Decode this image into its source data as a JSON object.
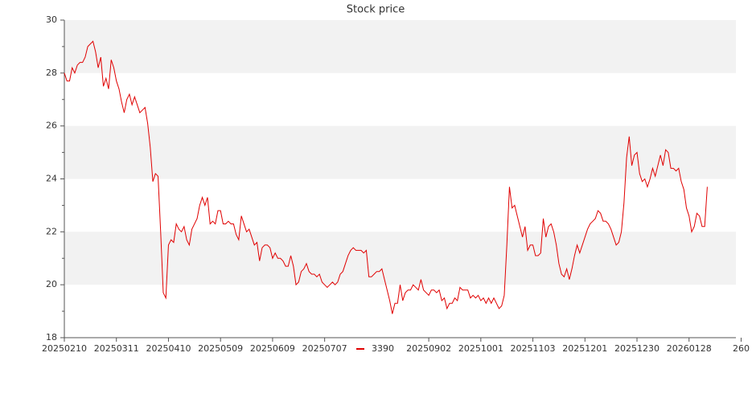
{
  "chart_data": {
    "type": "line",
    "title": "Stock price",
    "x": [
      0,
      1,
      2,
      3,
      4,
      5,
      6,
      7,
      8,
      9,
      10,
      11,
      12,
      13,
      14,
      15,
      16,
      17,
      18,
      19,
      20,
      21,
      22,
      23,
      24,
      25,
      26,
      27,
      28,
      29,
      30,
      31,
      32,
      33,
      34,
      35,
      36,
      37,
      38,
      39,
      40,
      41,
      42,
      43,
      44,
      45,
      46,
      47,
      48,
      49,
      50,
      51,
      52,
      53,
      54,
      55,
      56,
      57,
      58,
      59,
      60,
      61,
      62,
      63,
      64,
      65,
      66,
      67,
      68,
      69,
      70,
      71,
      72,
      73,
      74,
      75,
      76,
      77,
      78,
      79,
      80,
      81,
      82,
      83,
      84,
      85,
      86,
      87,
      88,
      89,
      90,
      91,
      92,
      93,
      94,
      95,
      96,
      97,
      98,
      99,
      100,
      101,
      102,
      103,
      104,
      105,
      106,
      107,
      108,
      109,
      110,
      111,
      112,
      113,
      114,
      115,
      116,
      117,
      118,
      119,
      120,
      121,
      122,
      123,
      124,
      125,
      126,
      127,
      128,
      129,
      130,
      131,
      132,
      133,
      134,
      135,
      136,
      137,
      138,
      139,
      140,
      141,
      142,
      143,
      144,
      145,
      146,
      147,
      148,
      149,
      150,
      151,
      152,
      153,
      154,
      155,
      156,
      157,
      158,
      159,
      160,
      161,
      162,
      163,
      164,
      165,
      166,
      167,
      168,
      169,
      170,
      171,
      172,
      173,
      174,
      175,
      176,
      177,
      178,
      179,
      180,
      181,
      182,
      183,
      184,
      185,
      186,
      187,
      188,
      189,
      190,
      191,
      192,
      193,
      194,
      195,
      196,
      197,
      198,
      199,
      200,
      201,
      202,
      203,
      204,
      205,
      206,
      207,
      208,
      209,
      210,
      211,
      212,
      213,
      214,
      215,
      216,
      217,
      218,
      219,
      220,
      221,
      222,
      223,
      224,
      225,
      226,
      227,
      228,
      229,
      230,
      231,
      232,
      233,
      234,
      235,
      236,
      237,
      238,
      239,
      240,
      241,
      242,
      243,
      244,
      245,
      246,
      247
    ],
    "series": [
      {
        "name": "3390",
        "color": "#e00000",
        "values": [
          28.0,
          27.7,
          27.7,
          28.2,
          28.0,
          28.3,
          28.4,
          28.4,
          28.6,
          29.0,
          29.1,
          29.2,
          28.8,
          28.2,
          28.6,
          27.5,
          27.8,
          27.4,
          28.5,
          28.2,
          27.7,
          27.4,
          26.9,
          26.5,
          27.0,
          27.2,
          26.8,
          27.1,
          26.8,
          26.5,
          26.6,
          26.7,
          26.1,
          25.2,
          23.9,
          24.2,
          24.1,
          22.0,
          19.7,
          19.5,
          21.5,
          21.7,
          21.6,
          22.3,
          22.1,
          22.0,
          22.2,
          21.7,
          21.5,
          22.1,
          22.3,
          22.5,
          23.0,
          23.3,
          23.0,
          23.3,
          22.3,
          22.4,
          22.3,
          22.8,
          22.8,
          22.3,
          22.3,
          22.4,
          22.3,
          22.3,
          21.9,
          21.7,
          22.6,
          22.3,
          22.0,
          22.1,
          21.8,
          21.5,
          21.6,
          20.9,
          21.4,
          21.5,
          21.5,
          21.4,
          21.0,
          21.2,
          21.0,
          21.0,
          20.9,
          20.7,
          20.7,
          21.1,
          20.7,
          20.0,
          20.1,
          20.5,
          20.6,
          20.8,
          20.5,
          20.4,
          20.4,
          20.3,
          20.4,
          20.1,
          20.0,
          19.9,
          20.0,
          20.1,
          20.0,
          20.1,
          20.4,
          20.5,
          20.8,
          21.1,
          21.3,
          21.4,
          21.3,
          21.3,
          21.3,
          21.2,
          21.3,
          20.3,
          20.3,
          20.4,
          20.5,
          20.5,
          20.6,
          20.2,
          19.8,
          19.4,
          18.9,
          19.3,
          19.3,
          20.0,
          19.4,
          19.7,
          19.8,
          19.8,
          20.0,
          19.9,
          19.8,
          20.2,
          19.8,
          19.7,
          19.6,
          19.8,
          19.8,
          19.7,
          19.8,
          19.4,
          19.5,
          19.1,
          19.3,
          19.3,
          19.5,
          19.4,
          19.9,
          19.8,
          19.8,
          19.8,
          19.5,
          19.6,
          19.5,
          19.6,
          19.4,
          19.5,
          19.3,
          19.5,
          19.3,
          19.5,
          19.3,
          19.1,
          19.2,
          19.6,
          21.5,
          23.7,
          22.9,
          23.0,
          22.6,
          22.2,
          21.8,
          22.2,
          21.3,
          21.5,
          21.5,
          21.1,
          21.1,
          21.2,
          22.5,
          21.8,
          22.2,
          22.3,
          22.0,
          21.5,
          20.8,
          20.4,
          20.3,
          20.6,
          20.2,
          20.6,
          21.1,
          21.5,
          21.2,
          21.5,
          21.8,
          22.1,
          22.3,
          22.4,
          22.5,
          22.8,
          22.7,
          22.4,
          22.4,
          22.3,
          22.1,
          21.8,
          21.5,
          21.6,
          22.0,
          23.1,
          24.8,
          25.6,
          24.5,
          24.9,
          25.0,
          24.2,
          23.9,
          24.0,
          23.7,
          24.0,
          24.4,
          24.1,
          24.5,
          24.9,
          24.5,
          25.1,
          25.0,
          24.4,
          24.4,
          24.3,
          24.4,
          23.9,
          23.6,
          22.9,
          22.6,
          22.0,
          22.2,
          22.7,
          22.6,
          22.2,
          22.2,
          23.7
        ]
      }
    ],
    "xlim": [
      0,
      258
    ],
    "xticks": [
      {
        "value": 0,
        "label": "20250210"
      },
      {
        "value": 20,
        "label": "20250311"
      },
      {
        "value": 40,
        "label": "20250410"
      },
      {
        "value": 60,
        "label": "20250509"
      },
      {
        "value": 80,
        "label": "20250609"
      },
      {
        "value": 100,
        "label": "20250707"
      },
      {
        "value": 140,
        "label": "20250902"
      },
      {
        "value": 160,
        "label": "20251001"
      },
      {
        "value": 180,
        "label": "20251103"
      },
      {
        "value": 200,
        "label": "20251201"
      },
      {
        "value": 220,
        "label": "20251230"
      },
      {
        "value": 240,
        "label": "20260128"
      },
      {
        "value": 260,
        "label": "260"
      }
    ],
    "ylim": [
      18,
      30
    ],
    "yticks": [
      18,
      20,
      22,
      24,
      26,
      28,
      30
    ],
    "yminorticks": [
      19,
      21,
      23,
      25,
      27,
      29
    ],
    "grid": "bands",
    "legend": "bottom"
  }
}
